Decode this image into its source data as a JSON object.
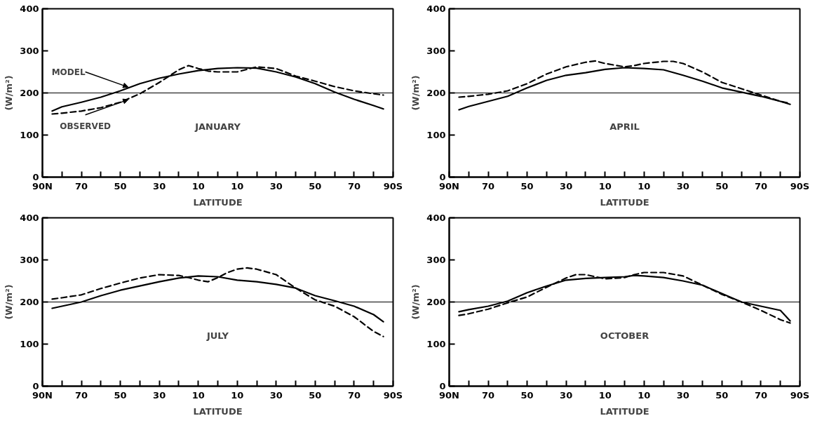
{
  "chart_data": [
    {
      "type": "line",
      "title": "JANUARY",
      "xlabel": "LATITUDE",
      "ylabel": "(W/m²)",
      "xlim": [
        90,
        -90
      ],
      "ylim": [
        0,
        400
      ],
      "xticks": [
        {
          "value": 90,
          "label": "90N"
        },
        {
          "value": 80,
          "label": null
        },
        {
          "value": 70,
          "label": "70"
        },
        {
          "value": 60,
          "label": null
        },
        {
          "value": 50,
          "label": "50"
        },
        {
          "value": 40,
          "label": null
        },
        {
          "value": 30,
          "label": "30"
        },
        {
          "value": 20,
          "label": null
        },
        {
          "value": 10,
          "label": "10"
        },
        {
          "value": 0,
          "label": null
        },
        {
          "value": -10,
          "label": "10"
        },
        {
          "value": -20,
          "label": null
        },
        {
          "value": -30,
          "label": "30"
        },
        {
          "value": -40,
          "label": null
        },
        {
          "value": -50,
          "label": "50"
        },
        {
          "value": -60,
          "label": null
        },
        {
          "value": -70,
          "label": "70"
        },
        {
          "value": -80,
          "label": null
        },
        {
          "value": -90,
          "label": "90S"
        }
      ],
      "yticks": [
        0,
        100,
        200,
        300,
        400
      ],
      "grid": false,
      "ref_lines": [
        {
          "axis": "y",
          "value": 200,
          "color": "#000000"
        }
      ],
      "annotations": [
        {
          "text": "MODEL",
          "x": 46,
          "y": 214
        },
        {
          "text": "OBSERVED",
          "x": 46,
          "y": 184
        }
      ],
      "series": [
        {
          "color": "#000000",
          "line_style": "solid",
          "x": [
            85,
            80,
            70,
            60,
            50,
            40,
            30,
            20,
            10,
            0,
            -10,
            -20,
            -30,
            -40,
            -50,
            -60,
            -70,
            -80,
            -85
          ],
          "values": [
            157,
            167,
            178,
            190,
            205,
            222,
            235,
            245,
            253,
            258,
            260,
            259,
            250,
            238,
            222,
            202,
            185,
            170,
            162
          ]
        },
        {
          "color": "#000000",
          "line_style": "dashed",
          "x": [
            85,
            80,
            70,
            60,
            50,
            40,
            30,
            20,
            15,
            10,
            5,
            0,
            -10,
            -20,
            -30,
            -40,
            -50,
            -60,
            -70,
            -80,
            -85
          ],
          "values": [
            150,
            152,
            157,
            165,
            178,
            198,
            225,
            255,
            265,
            258,
            252,
            250,
            250,
            262,
            258,
            240,
            228,
            215,
            205,
            198,
            195
          ]
        }
      ]
    },
    {
      "type": "line",
      "title": "APRIL",
      "xlabel": "LATITUDE",
      "ylabel": "(W/m²)",
      "xlim": [
        90,
        -90
      ],
      "ylim": [
        0,
        400
      ],
      "xticks": [
        {
          "value": 90,
          "label": "90N"
        },
        {
          "value": 80,
          "label": null
        },
        {
          "value": 70,
          "label": "70"
        },
        {
          "value": 60,
          "label": null
        },
        {
          "value": 50,
          "label": "50"
        },
        {
          "value": 40,
          "label": null
        },
        {
          "value": 30,
          "label": "30"
        },
        {
          "value": 20,
          "label": null
        },
        {
          "value": 10,
          "label": "10"
        },
        {
          "value": 0,
          "label": null
        },
        {
          "value": -10,
          "label": "10"
        },
        {
          "value": -20,
          "label": null
        },
        {
          "value": -30,
          "label": "30"
        },
        {
          "value": -40,
          "label": null
        },
        {
          "value": -50,
          "label": "50"
        },
        {
          "value": -60,
          "label": null
        },
        {
          "value": -70,
          "label": "70"
        },
        {
          "value": -80,
          "label": null
        },
        {
          "value": -90,
          "label": "90S"
        }
      ],
      "yticks": [
        0,
        100,
        200,
        300,
        400
      ],
      "grid": false,
      "ref_lines": [
        {
          "axis": "y",
          "value": 200,
          "color": "#000000"
        }
      ],
      "series": [
        {
          "color": "#000000",
          "line_style": "solid",
          "x": [
            85,
            80,
            70,
            60,
            50,
            40,
            30,
            20,
            10,
            0,
            -10,
            -20,
            -30,
            -40,
            -50,
            -60,
            -70,
            -80,
            -85
          ],
          "values": [
            160,
            168,
            180,
            192,
            212,
            230,
            242,
            248,
            256,
            260,
            258,
            255,
            242,
            228,
            212,
            202,
            192,
            180,
            173
          ]
        },
        {
          "color": "#000000",
          "line_style": "dashed",
          "x": [
            85,
            80,
            70,
            60,
            50,
            40,
            30,
            20,
            15,
            10,
            0,
            -5,
            -10,
            -20,
            -25,
            -30,
            -40,
            -50,
            -60,
            -70,
            -80,
            -85
          ],
          "values": [
            190,
            192,
            197,
            205,
            222,
            245,
            262,
            273,
            276,
            270,
            262,
            265,
            270,
            275,
            275,
            270,
            250,
            225,
            210,
            195,
            180,
            175
          ]
        }
      ]
    },
    {
      "type": "line",
      "title": "JULY",
      "xlabel": "LATITUDE",
      "ylabel": "(W/m²)",
      "xlim": [
        90,
        -90
      ],
      "ylim": [
        0,
        400
      ],
      "xticks": [
        {
          "value": 90,
          "label": "90N"
        },
        {
          "value": 80,
          "label": null
        },
        {
          "value": 70,
          "label": "70"
        },
        {
          "value": 60,
          "label": null
        },
        {
          "value": 50,
          "label": "50"
        },
        {
          "value": 40,
          "label": null
        },
        {
          "value": 30,
          "label": "30"
        },
        {
          "value": 20,
          "label": null
        },
        {
          "value": 10,
          "label": "10"
        },
        {
          "value": 0,
          "label": null
        },
        {
          "value": -10,
          "label": "10"
        },
        {
          "value": -20,
          "label": null
        },
        {
          "value": -30,
          "label": "30"
        },
        {
          "value": -40,
          "label": null
        },
        {
          "value": -50,
          "label": "50"
        },
        {
          "value": -60,
          "label": null
        },
        {
          "value": -70,
          "label": "70"
        },
        {
          "value": -80,
          "label": null
        },
        {
          "value": -90,
          "label": "90S"
        }
      ],
      "yticks": [
        0,
        100,
        200,
        300,
        400
      ],
      "grid": false,
      "ref_lines": [
        {
          "axis": "y",
          "value": 200,
          "color": "#000000"
        }
      ],
      "series": [
        {
          "color": "#000000",
          "line_style": "solid",
          "x": [
            85,
            80,
            70,
            60,
            50,
            40,
            30,
            20,
            10,
            0,
            -10,
            -20,
            -30,
            -40,
            -50,
            -60,
            -70,
            -80,
            -85
          ],
          "values": [
            185,
            190,
            200,
            215,
            228,
            238,
            248,
            257,
            262,
            260,
            252,
            248,
            242,
            233,
            215,
            203,
            190,
            170,
            153
          ]
        },
        {
          "color": "#000000",
          "line_style": "dashed",
          "x": [
            85,
            80,
            70,
            60,
            50,
            40,
            30,
            20,
            15,
            10,
            5,
            0,
            -5,
            -10,
            -15,
            -20,
            -30,
            -40,
            -50,
            -60,
            -70,
            -80,
            -85
          ],
          "values": [
            207,
            210,
            217,
            232,
            245,
            257,
            265,
            263,
            258,
            252,
            248,
            258,
            270,
            278,
            281,
            278,
            265,
            233,
            205,
            190,
            165,
            130,
            118
          ]
        }
      ]
    },
    {
      "type": "line",
      "title": "OCTOBER",
      "xlabel": "LATITUDE",
      "ylabel": "(W/m²)",
      "xlim": [
        90,
        -90
      ],
      "ylim": [
        0,
        400
      ],
      "xticks": [
        {
          "value": 90,
          "label": "90N"
        },
        {
          "value": 80,
          "label": null
        },
        {
          "value": 70,
          "label": "70"
        },
        {
          "value": 60,
          "label": null
        },
        {
          "value": 50,
          "label": "50"
        },
        {
          "value": 40,
          "label": null
        },
        {
          "value": 30,
          "label": "30"
        },
        {
          "value": 20,
          "label": null
        },
        {
          "value": 10,
          "label": "10"
        },
        {
          "value": 0,
          "label": null
        },
        {
          "value": -10,
          "label": "10"
        },
        {
          "value": -20,
          "label": null
        },
        {
          "value": -30,
          "label": "30"
        },
        {
          "value": -40,
          "label": null
        },
        {
          "value": -50,
          "label": "50"
        },
        {
          "value": -60,
          "label": null
        },
        {
          "value": -70,
          "label": "70"
        },
        {
          "value": -80,
          "label": null
        },
        {
          "value": -90,
          "label": "90S"
        }
      ],
      "yticks": [
        0,
        100,
        200,
        300,
        400
      ],
      "grid": false,
      "ref_lines": [
        {
          "axis": "y",
          "value": 200,
          "color": "#000000"
        }
      ],
      "series": [
        {
          "color": "#000000",
          "line_style": "solid",
          "x": [
            85,
            80,
            70,
            60,
            50,
            40,
            30,
            20,
            10,
            0,
            -5,
            -10,
            -20,
            -30,
            -40,
            -50,
            -60,
            -70,
            -80,
            -85
          ],
          "values": [
            177,
            182,
            190,
            202,
            222,
            238,
            252,
            256,
            258,
            260,
            263,
            262,
            258,
            250,
            240,
            220,
            200,
            190,
            180,
            155
          ]
        },
        {
          "color": "#000000",
          "line_style": "dashed",
          "x": [
            85,
            80,
            70,
            60,
            50,
            40,
            30,
            25,
            20,
            10,
            0,
            -5,
            -10,
            -20,
            -30,
            -40,
            -50,
            -60,
            -70,
            -80,
            -85
          ],
          "values": [
            168,
            172,
            183,
            198,
            212,
            235,
            257,
            265,
            265,
            255,
            258,
            265,
            270,
            270,
            262,
            240,
            218,
            200,
            180,
            158,
            150
          ]
        }
      ]
    }
  ]
}
